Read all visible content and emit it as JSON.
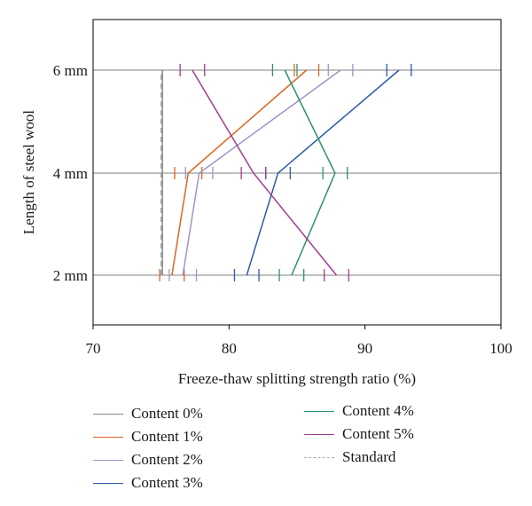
{
  "chart_data": {
    "type": "line",
    "title": "",
    "xlabel": "Freeze-thaw splitting strength ratio (%)",
    "ylabel": "Length of steel wool",
    "xlim": [
      70,
      100
    ],
    "xticks": [
      "70",
      "80",
      "90",
      "100"
    ],
    "categories": [
      "2 mm",
      "4 mm",
      "6 mm"
    ],
    "grid": "horizontal",
    "legend_position": "bottom",
    "series": [
      {
        "name": "Content 0%",
        "color": "#888888",
        "dashed": false,
        "x": [
          75.1,
          75.1,
          75.1
        ],
        "err": [
          0,
          0,
          0
        ]
      },
      {
        "name": "Content 1%",
        "color": "#d9661f",
        "dashed": false,
        "x": [
          75.8,
          77.0,
          85.7
        ],
        "err": [
          0.9,
          1.0,
          0.9
        ]
      },
      {
        "name": "Content 2%",
        "color": "#9c94c9",
        "dashed": false,
        "x": [
          76.6,
          77.8,
          88.2
        ],
        "err": [
          1.0,
          1.0,
          0.9
        ]
      },
      {
        "name": "Content 3%",
        "color": "#2d5aa8",
        "dashed": false,
        "x": [
          81.3,
          83.6,
          92.5
        ],
        "err": [
          0.9,
          0.9,
          0.9
        ]
      },
      {
        "name": "Content 4%",
        "color": "#2e9166",
        "dashed": false,
        "x": [
          84.6,
          87.8,
          84.1
        ],
        "err": [
          0.9,
          0.9,
          0.9
        ]
      },
      {
        "name": "Content 5%",
        "color": "#a03c93",
        "dashed": false,
        "x": [
          87.9,
          81.8,
          77.3
        ],
        "err": [
          0.9,
          0.9,
          0.9
        ]
      },
      {
        "name": "Standard",
        "color": "#aaaaaa",
        "dashed": true,
        "x": [
          75.0,
          75.0,
          75.0
        ],
        "err": [
          0,
          0,
          0
        ]
      }
    ]
  },
  "legend": {
    "items": [
      {
        "label": "Content 0%",
        "color": "#888888",
        "dashed": false
      },
      {
        "label": "Content 1%",
        "color": "#d9661f",
        "dashed": false
      },
      {
        "label": "Content 2%",
        "color": "#9c94c9",
        "dashed": false
      },
      {
        "label": "Content 3%",
        "color": "#2d5aa8",
        "dashed": false
      },
      {
        "label": "Content 4%",
        "color": "#2e9166",
        "dashed": false
      },
      {
        "label": "Content 5%",
        "color": "#a03c93",
        "dashed": false
      },
      {
        "label": "Standard",
        "color": "#aaaaaa",
        "dashed": true
      }
    ]
  }
}
